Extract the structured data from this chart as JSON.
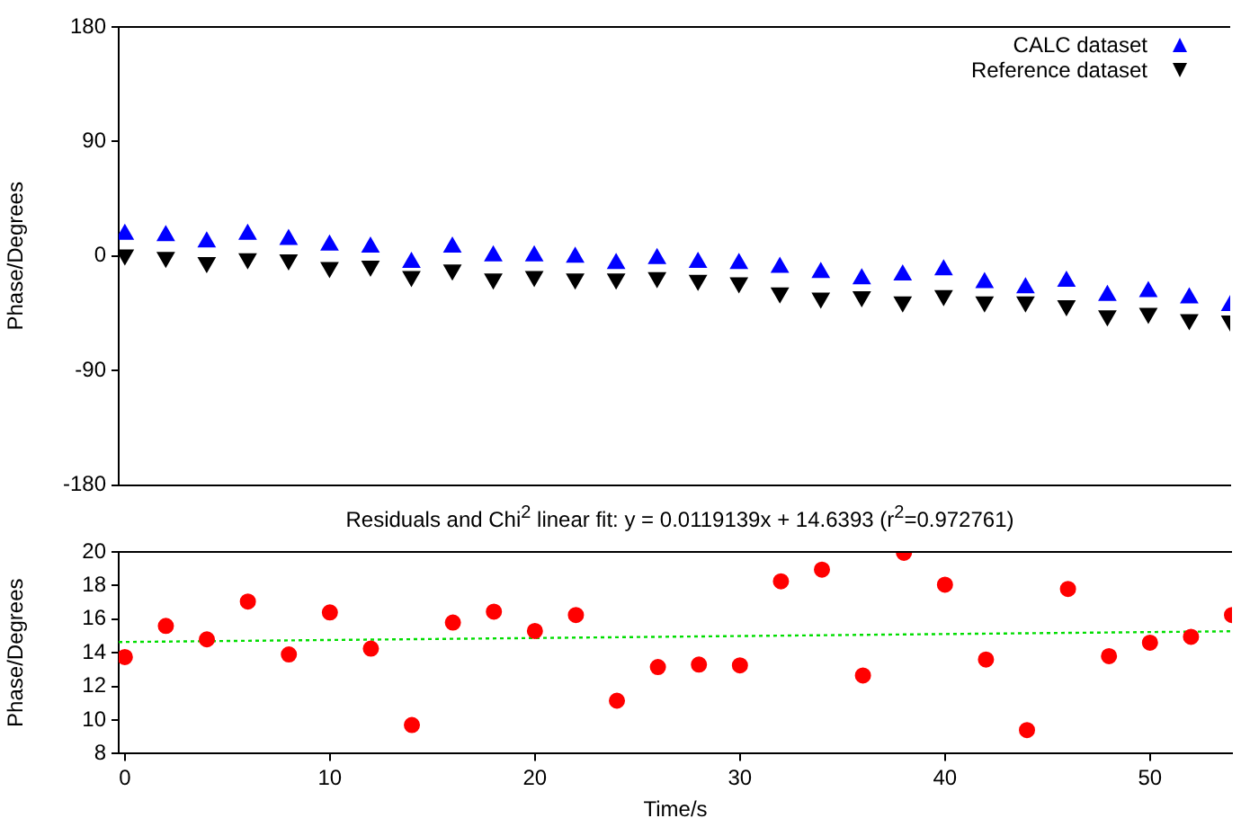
{
  "chart_data": [
    {
      "type": "scatter",
      "ylabel": "Phase/Degrees",
      "xlim": [
        -0.3,
        54
      ],
      "ylim": [
        -180,
        180
      ],
      "yticks": [
        -180,
        -90,
        0,
        90,
        180
      ],
      "tick_labels": "y",
      "grid": false,
      "legend": "top right",
      "x": [
        0,
        2,
        4,
        6,
        8,
        10,
        12,
        14,
        16,
        18,
        20,
        22,
        24,
        26,
        28,
        30,
        32,
        34,
        36,
        38,
        40,
        42,
        44,
        46,
        48,
        50,
        52,
        54
      ],
      "series": [
        {
          "name": "CALC dataset",
          "color": "#0000ff",
          "marker": "triangle",
          "values": [
            17,
            16,
            11,
            17,
            13,
            8.5,
            7,
            -5,
            7,
            0,
            0,
            -1,
            -6,
            -2,
            -5,
            -6,
            -9,
            -13,
            -18,
            -15,
            -11,
            -21,
            -25,
            -20,
            -31,
            -28,
            -33,
            -39
          ]
        },
        {
          "name": "Reference dataset",
          "color": "#000000",
          "marker": "triangle-down",
          "values": [
            1,
            -1,
            -5,
            -2,
            -3,
            -9,
            -8,
            -16,
            -11,
            -18,
            -16,
            -18,
            -18,
            -17,
            -19,
            -21,
            -29,
            -33,
            -32,
            -36,
            -31,
            -36,
            -36,
            -39,
            -47,
            -45,
            -50,
            -51
          ]
        }
      ]
    },
    {
      "type": "scatter",
      "title": "Residuals and Chi$^{2}$ linear fit: y = 0.0119139x + 14.6393  (r$^{2}$=0.972761)",
      "xlabel": "Time/s",
      "ylabel": "Phase/Degrees",
      "xlim": [
        -0.3,
        54
      ],
      "xticks": [
        0,
        10,
        20,
        30,
        40,
        50
      ],
      "ylim": [
        8,
        20
      ],
      "yticks": [
        8,
        10,
        12,
        14,
        16,
        18,
        20
      ],
      "grid": false,
      "legend": false,
      "x": [
        0,
        2,
        4,
        6,
        8,
        10,
        12,
        14,
        16,
        18,
        20,
        22,
        24,
        26,
        28,
        30,
        32,
        34,
        36,
        38,
        40,
        42,
        44,
        46,
        48,
        50,
        52,
        54
      ],
      "series": [
        {
          "color": "#ff0000",
          "marker": "circle",
          "values": [
            13.75,
            15.6,
            14.8,
            17.05,
            13.9,
            16.4,
            14.25,
            9.7,
            15.8,
            16.45,
            15.3,
            16.25,
            11.15,
            13.15,
            13.3,
            13.25,
            18.25,
            18.95,
            12.65,
            19.95,
            18.05,
            13.6,
            9.4,
            17.8,
            13.8,
            14.6,
            14.95,
            16.25
          ]
        },
        {
          "type": "line",
          "color": "#00dd00",
          "marker": "none",
          "line_style": "dotted",
          "x": [
            -0.3,
            54
          ],
          "values": [
            14.64,
            15.28
          ]
        }
      ]
    }
  ]
}
